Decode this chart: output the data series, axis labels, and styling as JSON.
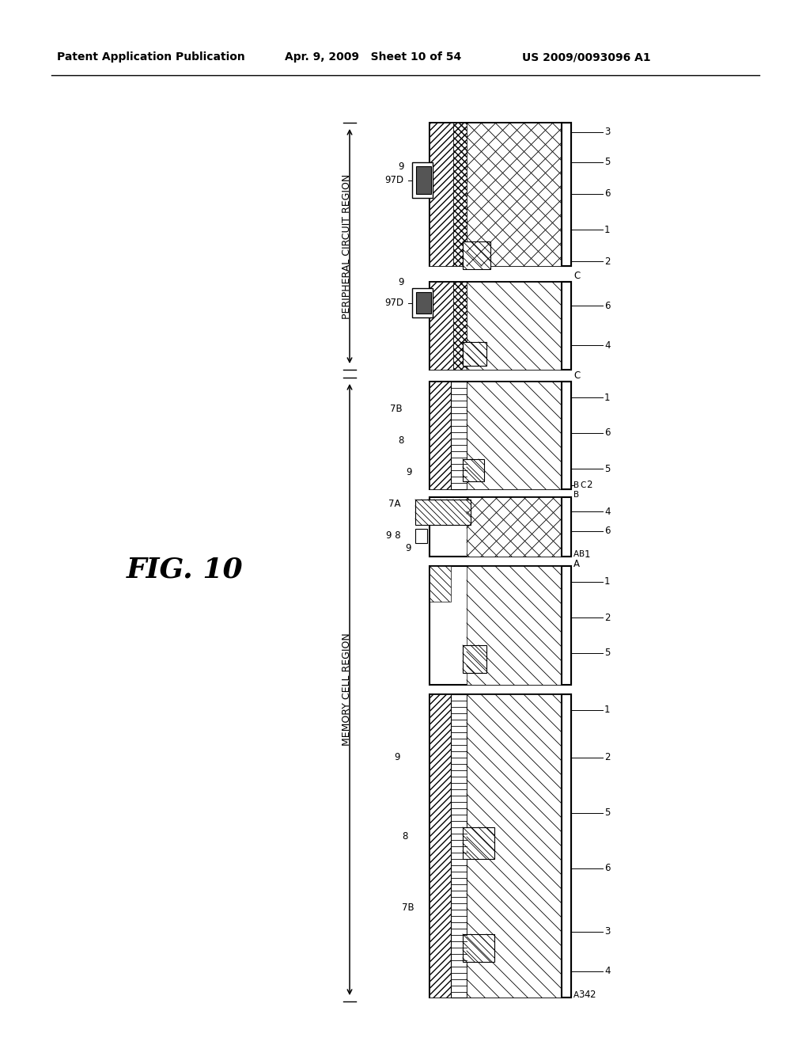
{
  "header_left": "Patent Application Publication",
  "header_mid": "Apr. 9, 2009   Sheet 10 of 54",
  "header_right": "US 2009/0093096 A1",
  "fig_label": "FIG. 10",
  "memory_cell_region": "MEMORY CELL REGION",
  "peripheral_circuit_region": "PERIPHERAL CIRCUIT REGION",
  "bg_color": "#ffffff"
}
